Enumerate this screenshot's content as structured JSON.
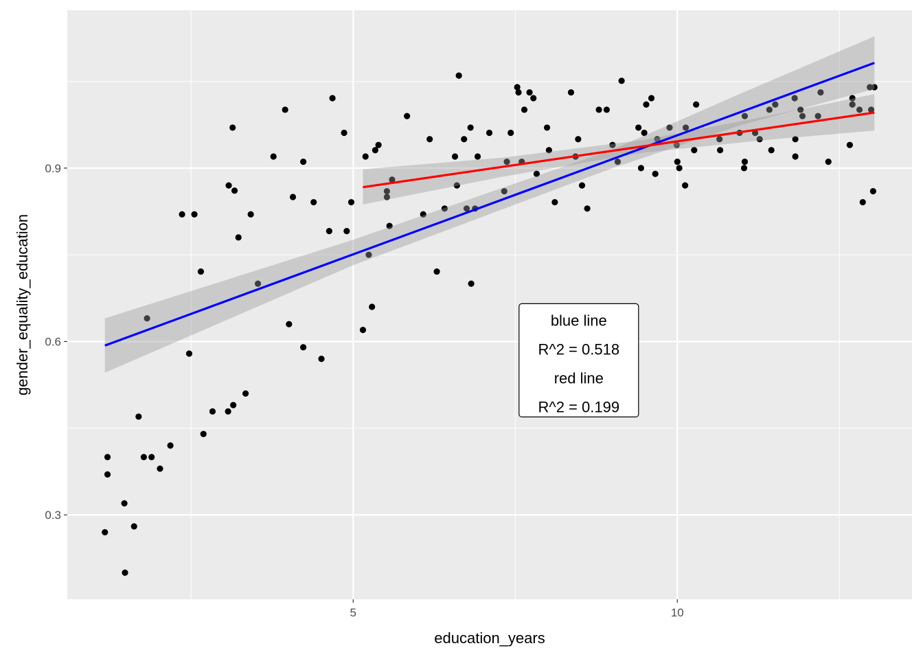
{
  "chart_data": {
    "type": "scatter",
    "xlabel": "education_years",
    "ylabel": "gender_equality_education",
    "xlim": [
      0.59,
      13.62
    ],
    "ylim": [
      0.154,
      1.173
    ],
    "x_ticks": [
      5,
      10
    ],
    "x_tick_labels": [
      "5",
      "10"
    ],
    "x_minor": [
      2.5,
      7.5,
      12.5
    ],
    "y_ticks": [
      0.3,
      0.6,
      0.9
    ],
    "y_tick_labels": [
      "0.3",
      "0.6",
      "0.9"
    ],
    "y_minor": [
      0.45,
      0.75,
      1.05
    ],
    "grid": true,
    "colors": {
      "panel": "#ebebeb",
      "grid": "#ffffff",
      "points": "#000000",
      "ribbon": "#999999",
      "blue_line": "#0000ff",
      "red_line": "#ff0000"
    },
    "points": [
      [
        1.17,
        0.27
      ],
      [
        1.21,
        0.37
      ],
      [
        1.21,
        0.4
      ],
      [
        1.47,
        0.32
      ],
      [
        1.48,
        0.2
      ],
      [
        1.62,
        0.28
      ],
      [
        1.69,
        0.47
      ],
      [
        1.77,
        0.4
      ],
      [
        1.82,
        0.64
      ],
      [
        1.89,
        0.4
      ],
      [
        2.02,
        0.38
      ],
      [
        2.18,
        0.42
      ],
      [
        2.36,
        0.82
      ],
      [
        2.47,
        0.579
      ],
      [
        2.55,
        0.82
      ],
      [
        2.65,
        0.721
      ],
      [
        2.69,
        0.44
      ],
      [
        2.83,
        0.479
      ],
      [
        3.07,
        0.479
      ],
      [
        3.08,
        0.87
      ],
      [
        3.14,
        0.97
      ],
      [
        3.15,
        0.49
      ],
      [
        3.17,
        0.861
      ],
      [
        3.23,
        0.78
      ],
      [
        3.34,
        0.51
      ],
      [
        3.42,
        0.82
      ],
      [
        3.53,
        0.7
      ],
      [
        3.77,
        0.92
      ],
      [
        3.95,
        1.001
      ],
      [
        4.01,
        0.63
      ],
      [
        4.07,
        0.85
      ],
      [
        4.23,
        0.911
      ],
      [
        4.23,
        0.59
      ],
      [
        4.39,
        0.841
      ],
      [
        4.51,
        0.57
      ],
      [
        4.63,
        0.791
      ],
      [
        4.68,
        1.021
      ],
      [
        4.86,
        0.961
      ],
      [
        4.9,
        0.791
      ],
      [
        4.97,
        0.841
      ],
      [
        5.15,
        0.62
      ],
      [
        5.19,
        0.92
      ],
      [
        5.24,
        0.75
      ],
      [
        5.29,
        0.66
      ],
      [
        5.34,
        0.931
      ],
      [
        5.39,
        0.94
      ],
      [
        5.52,
        0.85
      ],
      [
        5.52,
        0.86
      ],
      [
        5.56,
        0.8
      ],
      [
        5.6,
        0.88
      ],
      [
        5.83,
        0.99
      ],
      [
        6.08,
        0.82
      ],
      [
        6.18,
        0.95
      ],
      [
        6.29,
        0.721
      ],
      [
        6.41,
        0.83
      ],
      [
        6.57,
        0.92
      ],
      [
        6.6,
        0.87
      ],
      [
        6.63,
        1.06
      ],
      [
        6.71,
        0.95
      ],
      [
        6.75,
        0.83
      ],
      [
        6.81,
        0.97
      ],
      [
        6.82,
        0.7
      ],
      [
        6.88,
        0.83
      ],
      [
        6.92,
        0.92
      ],
      [
        7.1,
        0.961
      ],
      [
        7.33,
        0.86
      ],
      [
        7.37,
        0.911
      ],
      [
        7.43,
        0.961
      ],
      [
        7.53,
        1.04
      ],
      [
        7.55,
        1.031
      ],
      [
        7.6,
        0.911
      ],
      [
        7.64,
        1.001
      ],
      [
        7.72,
        1.031
      ],
      [
        7.78,
        1.021
      ],
      [
        7.83,
        0.89
      ],
      [
        7.99,
        0.97
      ],
      [
        8.02,
        0.931
      ],
      [
        8.11,
        0.841
      ],
      [
        8.36,
        1.031
      ],
      [
        8.43,
        0.92
      ],
      [
        8.47,
        0.95
      ],
      [
        8.53,
        0.87
      ],
      [
        8.61,
        0.83
      ],
      [
        8.79,
        1.001
      ],
      [
        8.91,
        1.001
      ],
      [
        9.0,
        0.94
      ],
      [
        9.08,
        0.911
      ],
      [
        9.14,
        1.051
      ],
      [
        9.4,
        0.97
      ],
      [
        9.44,
        0.9
      ],
      [
        9.49,
        0.961
      ],
      [
        9.52,
        1.01
      ],
      [
        9.6,
        1.021
      ],
      [
        9.66,
        0.89
      ],
      [
        9.69,
        0.95
      ],
      [
        9.88,
        0.97
      ],
      [
        9.99,
        0.94
      ],
      [
        10.0,
        0.911
      ],
      [
        10.03,
        0.9
      ],
      [
        10.12,
        0.87
      ],
      [
        10.13,
        0.97
      ],
      [
        10.26,
        0.931
      ],
      [
        10.29,
        1.01
      ],
      [
        10.65,
        0.95
      ],
      [
        10.66,
        0.931
      ],
      [
        10.96,
        0.961
      ],
      [
        11.03,
        0.9
      ],
      [
        11.04,
        0.911
      ],
      [
        11.04,
        0.99
      ],
      [
        11.2,
        0.961
      ],
      [
        11.27,
        0.95
      ],
      [
        11.42,
        1.001
      ],
      [
        11.45,
        0.931
      ],
      [
        11.51,
        1.01
      ],
      [
        11.81,
        1.021
      ],
      [
        11.82,
        0.95
      ],
      [
        11.82,
        0.92
      ],
      [
        11.9,
        1.001
      ],
      [
        11.93,
        0.99
      ],
      [
        12.17,
        0.99
      ],
      [
        12.21,
        1.031
      ],
      [
        12.33,
        0.911
      ],
      [
        12.66,
        0.94
      ],
      [
        12.7,
        1.021
      ],
      [
        12.7,
        1.01
      ],
      [
        12.81,
        1.001
      ],
      [
        12.86,
        0.841
      ],
      [
        12.97,
        1.04
      ],
      [
        12.99,
        1.001
      ],
      [
        13.02,
        0.86
      ],
      [
        13.04,
        1.04
      ]
    ],
    "fits": [
      {
        "name": "blue line",
        "x": [
          1.17,
          13.04
        ],
        "y": [
          0.593,
          1.082
        ],
        "band": {
          "x": [
            1.17,
            5.0,
            9.0,
            11.0,
            13.04
          ],
          "lower": [
            0.546,
            0.732,
            0.9,
            0.975,
            1.037
          ],
          "upper": [
            0.64,
            0.776,
            0.932,
            1.03,
            1.128
          ]
        }
      },
      {
        "name": "red line",
        "x": [
          5.15,
          13.04
        ],
        "y": [
          0.867,
          0.996
        ],
        "band": {
          "x": [
            5.15,
            7.3,
            9.5,
            11.3,
            13.04
          ],
          "lower": [
            0.837,
            0.885,
            0.927,
            0.948,
            0.965
          ],
          "upper": [
            0.898,
            0.918,
            0.949,
            0.988,
            1.028
          ]
        }
      }
    ],
    "annotation": {
      "x": 8.48,
      "y": 0.568,
      "lines": [
        "blue line",
        "R^2 = 0.518",
        "red line",
        "R^2 = 0.199"
      ]
    }
  }
}
